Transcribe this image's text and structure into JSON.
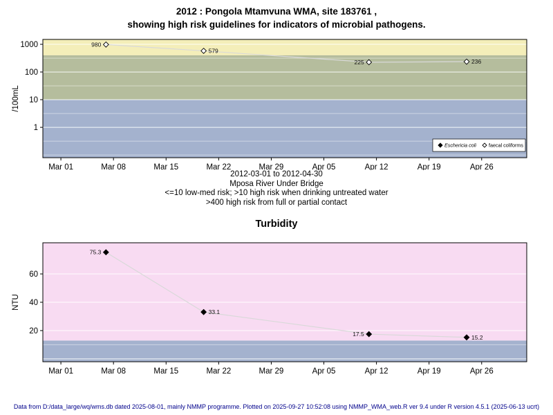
{
  "page": {
    "title_line1": "2012 : Pongola Mtamvuna WMA, site 183761 ,",
    "title_line2": "showing high risk guidelines for indicators of microbial pathogens.",
    "footer": "Data from D:/data_large/wq/wms.db dated 2025-08-01, mainly NMMP programme. Plotted on 2025-09-27 10:52:08 using NMMP_WMA_web.R ver 9.4 under R version 4.5.1 (2025-06-13 ucrt)",
    "footer_color": "#00008b"
  },
  "chart_data": [
    {
      "type": "line",
      "name": "microbial-indicators",
      "ylabel": "/100mL",
      "yscale": "log",
      "ylim": [
        0.08,
        1500
      ],
      "ytick_values": [
        1000,
        100,
        10,
        1
      ],
      "ytick_labels": [
        "1000",
        "100",
        "10",
        "1"
      ],
      "grid_major": [
        1000,
        100,
        10,
        1
      ],
      "grid_minor": [
        316,
        31.6,
        3.16,
        0.316,
        0.1
      ],
      "xlim": [
        -2.4,
        62
      ],
      "x_tick_days": [
        0,
        7,
        14,
        21,
        28,
        35,
        42,
        49,
        56
      ],
      "x_tick_labels": [
        "Mar 01",
        "Mar 08",
        "Mar 15",
        "Mar 22",
        "Mar 29",
        "Apr 05",
        "Apr 12",
        "Apr 19",
        "Apr 26"
      ],
      "bands": [
        {
          "from": 400,
          "to": 1500,
          "color": "#f4eeb9",
          "meaning": ">400 high risk from full or partial contact"
        },
        {
          "from": 10,
          "to": 400,
          "color": "#b5bd9d",
          "meaning": ">10 high risk when drinking untreated water"
        },
        {
          "from": 0.08,
          "to": 10,
          "color": "#a4b2ce",
          "meaning": "<=10 low-med risk"
        }
      ],
      "line_color": "#d9d9d9",
      "series": [
        {
          "name": "faecal coliforms",
          "marker": "open-diamond",
          "x_days": [
            6,
            19,
            41,
            54
          ],
          "values": [
            980,
            579,
            225,
            236
          ],
          "labels": [
            "980",
            "579",
            "225",
            "236"
          ],
          "label_side": [
            "left",
            "right",
            "left",
            "right"
          ]
        }
      ],
      "legend": {
        "items": [
          {
            "label": "Eschericia coli",
            "marker": "filled-diamond",
            "italic": true
          },
          {
            "label": "faecal coliforms",
            "marker": "open-diamond",
            "italic": false
          }
        ]
      },
      "captions": [
        "2012-03-01 to 2012-04-30",
        "Mposa River Under Bridge",
        "<=10 low-med risk; >10 high risk when drinking untreated water",
        ">400 high risk from full or partial contact"
      ]
    },
    {
      "type": "line",
      "name": "turbidity",
      "title": "Turbidity",
      "ylabel": "NTU",
      "yscale": "linear",
      "ylim": [
        -2,
        82
      ],
      "ytick_values": [
        20,
        40,
        60
      ],
      "ytick_labels": [
        "20",
        "40",
        "60"
      ],
      "grid_major": [
        0,
        20,
        40,
        60
      ],
      "grid_minor": [
        10
      ],
      "xlim": [
        -2.4,
        62
      ],
      "x_tick_days": [
        0,
        7,
        14,
        21,
        28,
        35,
        42,
        49,
        56
      ],
      "x_tick_labels": [
        "Mar 01",
        "Mar 08",
        "Mar 15",
        "Mar 22",
        "Mar 29",
        "Apr 05",
        "Apr 12",
        "Apr 19",
        "Apr 26"
      ],
      "bands": [
        {
          "from": -2,
          "to": 13,
          "color": "#a4b2ce",
          "meaning": "low band"
        },
        {
          "from": 13,
          "to": 82,
          "color": "#f8dbf2",
          "meaning": "high band"
        }
      ],
      "line_color": "#d9d9d9",
      "series": [
        {
          "name": "turbidity",
          "marker": "filled-diamond",
          "x_days": [
            6,
            19,
            41,
            54
          ],
          "values": [
            75.3,
            33.1,
            17.5,
            15.2
          ],
          "labels": [
            "75.3",
            "33.1",
            "17.5",
            "15.2"
          ],
          "label_side": [
            "left",
            "right",
            "left",
            "right"
          ]
        }
      ]
    }
  ]
}
